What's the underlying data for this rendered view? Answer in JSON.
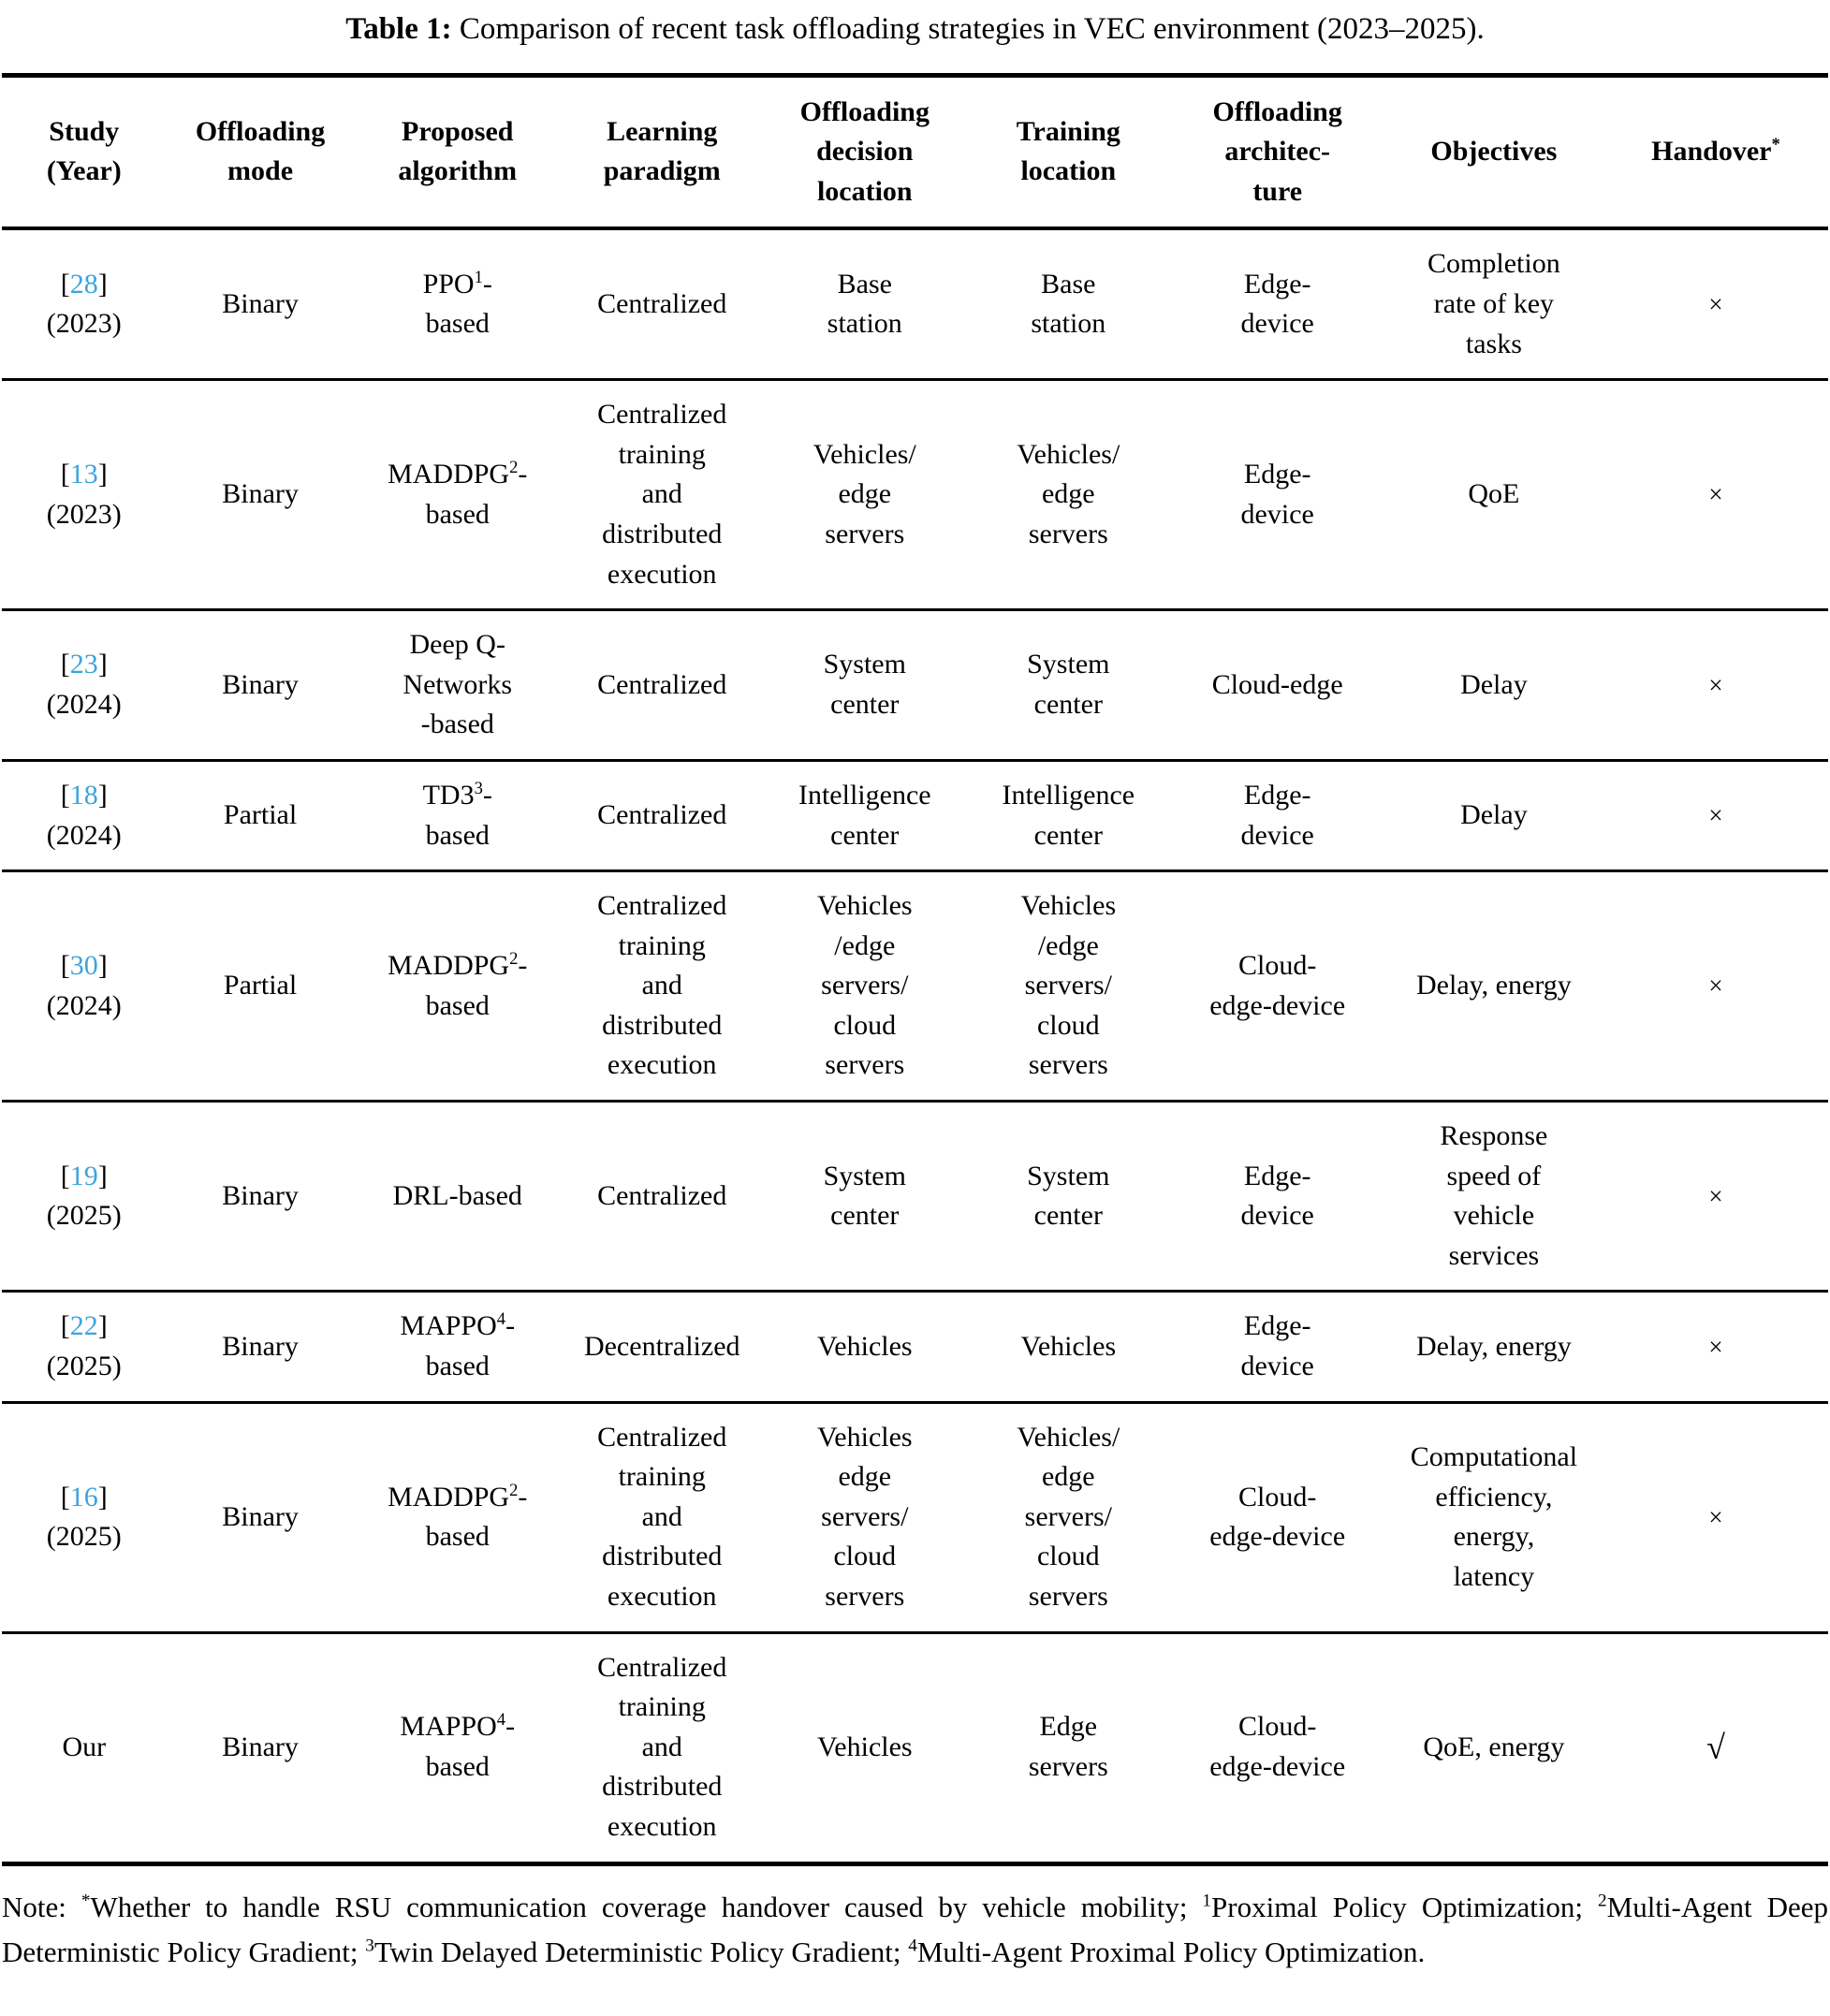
{
  "page": {
    "background_color": "#ffffff",
    "text_color": "#000000",
    "citation_color": "#3ca4de"
  },
  "title": {
    "label": "Table 1:",
    "text": " Comparison of recent task offloading strategies in VEC environment (2023–2025)."
  },
  "table": {
    "col_widths_percent": [
      9,
      10.3,
      11.3,
      11.1,
      11.1,
      11.2,
      11.7,
      12,
      12.3
    ],
    "headers": [
      "Study\n(Year)",
      "Offloading\nmode",
      "Proposed\nalgorithm",
      "Learning\nparadigm",
      "Offloading\ndecision\nlocation",
      "Training\nlocation",
      "Offloading\narchitec-\nture",
      "Objectives",
      "Handover^*^"
    ],
    "rows": [
      {
        "study": {
          "ref": "28",
          "year": "(2023)"
        },
        "cells": [
          "Binary",
          "PPO^1^-\nbased",
          "Centralized",
          "Base\nstation",
          "Base\nstation",
          "Edge-\ndevice",
          "Completion\nrate of key\ntasks",
          "×"
        ]
      },
      {
        "study": {
          "ref": "13",
          "year": "(2023)"
        },
        "cells": [
          "Binary",
          "MADDPG^2^-\nbased",
          "Centralized\ntraining\nand\ndistributed\nexecution",
          "Vehicles/\nedge\nservers",
          "Vehicles/\nedge\nservers",
          "Edge-\ndevice",
          "QoE",
          "×"
        ]
      },
      {
        "study": {
          "ref": "23",
          "year": "(2024)"
        },
        "cells": [
          "Binary",
          "Deep Q-\nNetworks\n-based",
          "Centralized",
          "System\ncenter",
          "System\ncenter",
          "Cloud-edge",
          "Delay",
          "×"
        ]
      },
      {
        "study": {
          "ref": "18",
          "year": "(2024)"
        },
        "cells": [
          "Partial",
          "TD3^3^-\nbased",
          "Centralized",
          "Intelligence\ncenter",
          "Intelligence\ncenter",
          "Edge-\ndevice",
          "Delay",
          "×"
        ]
      },
      {
        "study": {
          "ref": "30",
          "year": "(2024)"
        },
        "cells": [
          "Partial",
          "MADDPG^2^-\nbased",
          "Centralized\ntraining\nand\ndistributed\nexecution",
          "Vehicles\n/edge\nservers/\ncloud\nservers",
          "Vehicles\n/edge\nservers/\ncloud\nservers",
          "Cloud-\nedge-device",
          "Delay, energy",
          "×"
        ]
      },
      {
        "study": {
          "ref": "19",
          "year": "(2025)"
        },
        "cells": [
          "Binary",
          "DRL-based",
          "Centralized",
          "System\ncenter",
          "System\ncenter",
          "Edge-\ndevice",
          "Response\nspeed of\nvehicle\nservices",
          "×"
        ]
      },
      {
        "study": {
          "ref": "22",
          "year": "(2025)"
        },
        "cells": [
          "Binary",
          "MAPPO^4^-\nbased",
          "Decentralized",
          "Vehicles",
          "Vehicles",
          "Edge-\ndevice",
          "Delay, energy",
          "×"
        ]
      },
      {
        "study": {
          "ref": "16",
          "year": "(2025)"
        },
        "cells": [
          "Binary",
          "MADDPG^2^-\nbased",
          "Centralized\ntraining\nand\ndistributed\nexecution",
          "Vehicles\nedge\nservers/\ncloud\nservers",
          "Vehicles/\nedge\nservers/\ncloud\nservers",
          "Cloud-\nedge-device",
          "Computational\nefficiency,\nenergy,\nlatency",
          "×"
        ]
      },
      {
        "study": {
          "label": "Our"
        },
        "cells": [
          "Binary",
          "MAPPO^4^-\nbased",
          "Centralized\ntraining\nand\ndistributed\nexecution",
          "Vehicles",
          "Edge\nservers",
          "Cloud-\nedge-device",
          "QoE, energy",
          "√"
        ]
      }
    ]
  },
  "note": {
    "text": "Note: ^*^Whether to handle RSU communication coverage handover caused by vehicle mobility; ^1^Proximal Policy Optimization; ^2^Multi-Agent Deep Deterministic Policy Gradient; ^3^Twin Delayed Deterministic Policy Gradient; ^4^Multi-Agent Proximal Policy Optimization."
  }
}
